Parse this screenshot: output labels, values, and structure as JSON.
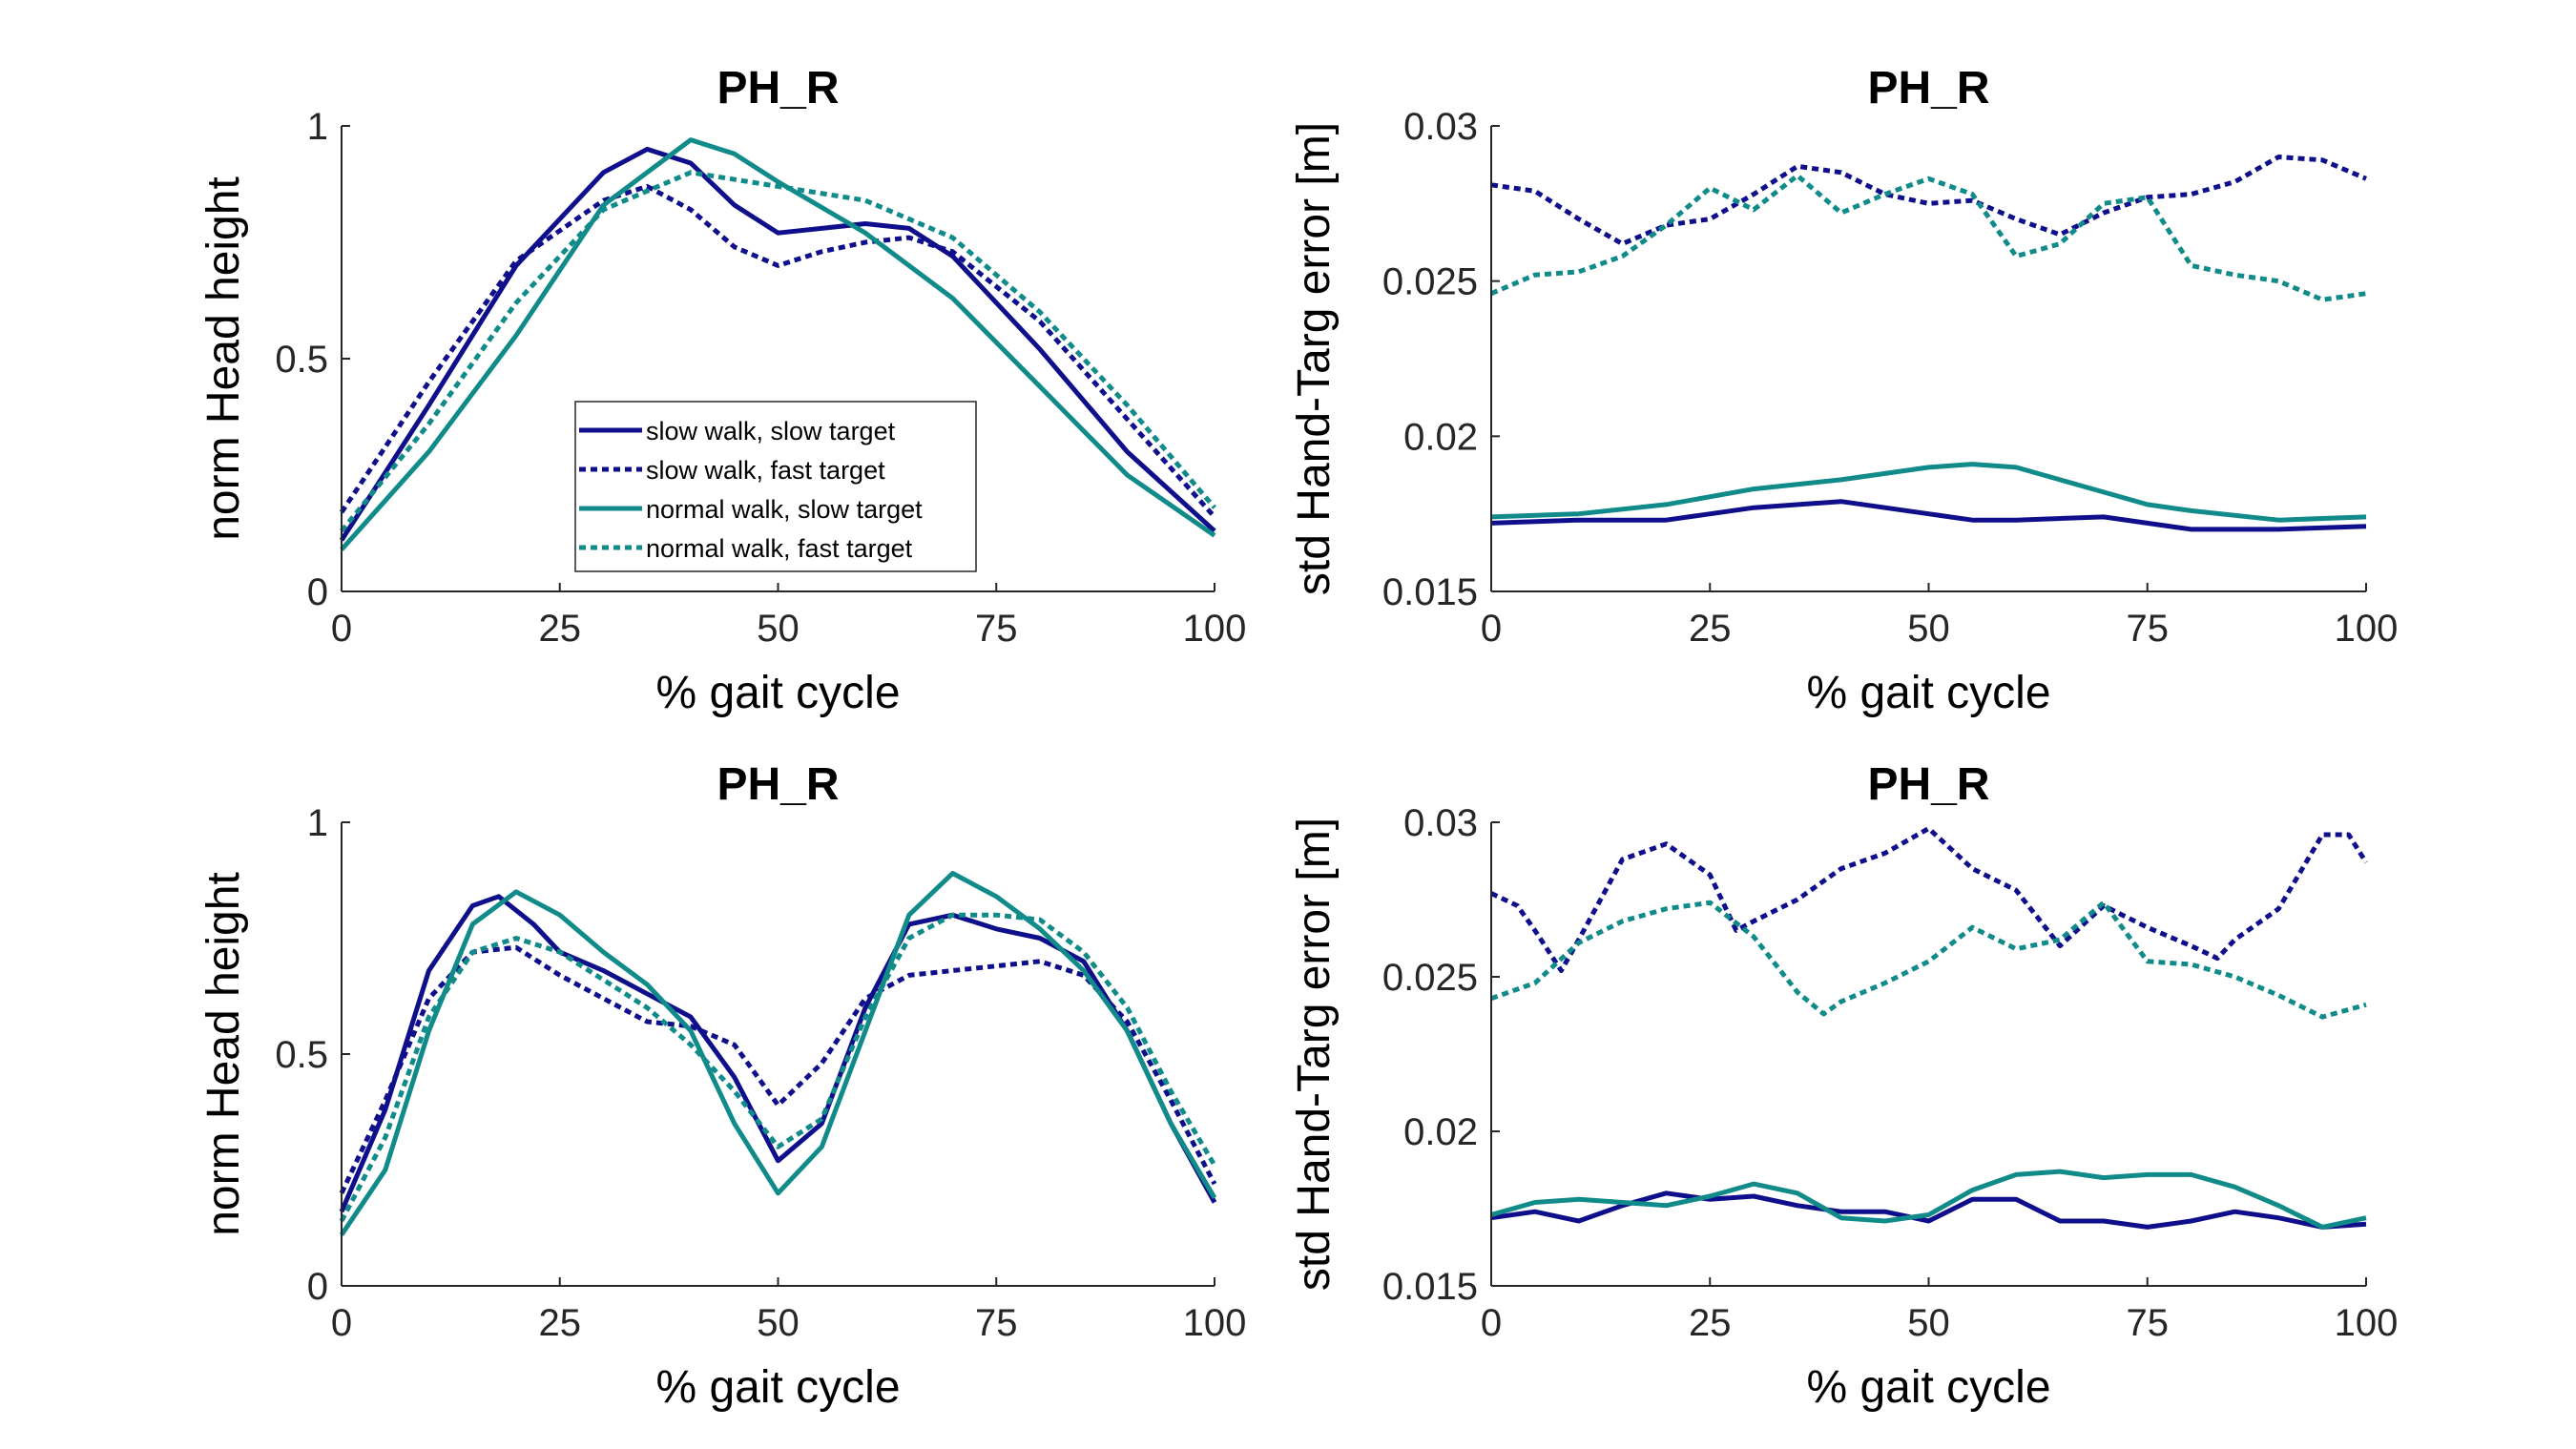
{
  "chart_data": [
    {
      "type": "line",
      "title": "PH_R",
      "xlabel": "% gait cycle",
      "ylabel": "norm Head height",
      "xlim": [
        0,
        100
      ],
      "ylim": [
        0,
        1
      ],
      "xticks": [
        0,
        25,
        50,
        75,
        100
      ],
      "yticks": [
        0,
        0.5,
        1
      ],
      "xtick_labels": [
        "0",
        "25",
        "50",
        "75",
        "100"
      ],
      "ytick_labels": [
        "0",
        "0.5",
        "1"
      ],
      "legend_position": "lower-center",
      "grid": false,
      "series": [
        {
          "name": "slow walk, slow target",
          "color": "#0f0f8c",
          "style": "solid",
          "x": [
            0,
            10,
            20,
            30,
            35,
            40,
            45,
            50,
            55,
            60,
            65,
            70,
            80,
            90,
            100
          ],
          "y": [
            0.11,
            0.4,
            0.7,
            0.9,
            0.95,
            0.92,
            0.83,
            0.77,
            0.78,
            0.79,
            0.78,
            0.72,
            0.52,
            0.3,
            0.13
          ]
        },
        {
          "name": "slow walk, fast target",
          "color": "#0f0f8c",
          "style": "dotted",
          "x": [
            0,
            10,
            20,
            30,
            35,
            40,
            45,
            50,
            55,
            60,
            65,
            70,
            80,
            90,
            100
          ],
          "y": [
            0.17,
            0.45,
            0.71,
            0.84,
            0.87,
            0.82,
            0.74,
            0.7,
            0.73,
            0.75,
            0.76,
            0.73,
            0.58,
            0.37,
            0.16
          ]
        },
        {
          "name": "normal walk, slow target",
          "color": "#108b89",
          "style": "solid",
          "x": [
            0,
            10,
            20,
            30,
            40,
            45,
            50,
            60,
            70,
            80,
            90,
            100
          ],
          "y": [
            0.09,
            0.3,
            0.55,
            0.83,
            0.97,
            0.94,
            0.88,
            0.77,
            0.63,
            0.44,
            0.25,
            0.12
          ]
        },
        {
          "name": "normal walk, fast target",
          "color": "#108b89",
          "style": "dotted",
          "x": [
            0,
            10,
            20,
            30,
            40,
            50,
            60,
            70,
            80,
            90,
            100
          ],
          "y": [
            0.13,
            0.36,
            0.62,
            0.82,
            0.9,
            0.87,
            0.84,
            0.76,
            0.6,
            0.4,
            0.18
          ]
        }
      ]
    },
    {
      "type": "line",
      "title": "PH_R",
      "xlabel": "% gait cycle",
      "ylabel": "std Hand-Targ error [m]",
      "xlim": [
        0,
        100
      ],
      "ylim": [
        0.015,
        0.03
      ],
      "xticks": [
        0,
        25,
        50,
        75,
        100
      ],
      "yticks": [
        0.015,
        0.02,
        0.025,
        0.03
      ],
      "xtick_labels": [
        "0",
        "25",
        "50",
        "75",
        "100"
      ],
      "ytick_labels": [
        "0.015",
        "0.02",
        "0.025",
        "0.03"
      ],
      "grid": false,
      "series": [
        {
          "color": "#0f0f8c",
          "style": "dotted",
          "x": [
            0,
            5,
            10,
            15,
            20,
            25,
            30,
            35,
            40,
            45,
            50,
            55,
            60,
            65,
            70,
            75,
            80,
            85,
            90,
            95,
            100
          ],
          "y": [
            0.0281,
            0.0279,
            0.027,
            0.0262,
            0.0268,
            0.027,
            0.0278,
            0.0287,
            0.0285,
            0.0278,
            0.0275,
            0.0276,
            0.027,
            0.0265,
            0.0272,
            0.0277,
            0.0278,
            0.0282,
            0.029,
            0.0289,
            0.0283
          ]
        },
        {
          "color": "#108b89",
          "style": "dotted",
          "x": [
            0,
            5,
            10,
            15,
            20,
            25,
            30,
            35,
            40,
            45,
            50,
            55,
            60,
            65,
            70,
            75,
            80,
            85,
            90,
            95,
            100
          ],
          "y": [
            0.0246,
            0.0252,
            0.0253,
            0.0258,
            0.0268,
            0.028,
            0.0273,
            0.0284,
            0.0272,
            0.0278,
            0.0283,
            0.0278,
            0.0258,
            0.0262,
            0.0275,
            0.0277,
            0.0255,
            0.0252,
            0.025,
            0.0244,
            0.0246
          ]
        },
        {
          "color": "#0f0f8c",
          "style": "solid",
          "x": [
            0,
            10,
            20,
            30,
            40,
            45,
            50,
            55,
            60,
            70,
            80,
            90,
            100
          ],
          "y": [
            0.0172,
            0.0173,
            0.0173,
            0.0177,
            0.0179,
            0.0177,
            0.0175,
            0.0173,
            0.0173,
            0.0174,
            0.017,
            0.017,
            0.0171
          ]
        },
        {
          "color": "#108b89",
          "style": "solid",
          "x": [
            0,
            10,
            20,
            30,
            40,
            50,
            55,
            60,
            65,
            70,
            75,
            80,
            90,
            100
          ],
          "y": [
            0.0174,
            0.0175,
            0.0178,
            0.0183,
            0.0186,
            0.019,
            0.0191,
            0.019,
            0.0186,
            0.0182,
            0.0178,
            0.0176,
            0.0173,
            0.0174
          ]
        }
      ]
    },
    {
      "type": "line",
      "title": "PH_R",
      "xlabel": "% gait cycle",
      "ylabel": "norm Head height",
      "xlim": [
        0,
        100
      ],
      "ylim": [
        0,
        1
      ],
      "xticks": [
        0,
        25,
        50,
        75,
        100
      ],
      "yticks": [
        0,
        0.5,
        1
      ],
      "xtick_labels": [
        "0",
        "25",
        "50",
        "75",
        "100"
      ],
      "ytick_labels": [
        "0",
        "0.5",
        "1"
      ],
      "grid": false,
      "series": [
        {
          "color": "#0f0f8c",
          "style": "solid",
          "x": [
            0,
            5,
            10,
            15,
            18,
            22,
            25,
            30,
            35,
            40,
            45,
            50,
            55,
            60,
            65,
            70,
            75,
            80,
            85,
            90,
            95,
            100
          ],
          "y": [
            0.16,
            0.38,
            0.68,
            0.82,
            0.84,
            0.78,
            0.72,
            0.68,
            0.63,
            0.58,
            0.45,
            0.27,
            0.35,
            0.6,
            0.78,
            0.8,
            0.77,
            0.75,
            0.7,
            0.55,
            0.35,
            0.18
          ]
        },
        {
          "color": "#0f0f8c",
          "style": "dotted",
          "x": [
            0,
            5,
            10,
            15,
            20,
            25,
            30,
            35,
            40,
            45,
            50,
            55,
            60,
            65,
            70,
            75,
            80,
            85,
            90,
            95,
            100
          ],
          "y": [
            0.2,
            0.4,
            0.62,
            0.72,
            0.73,
            0.67,
            0.62,
            0.57,
            0.56,
            0.52,
            0.39,
            0.48,
            0.62,
            0.67,
            0.68,
            0.69,
            0.7,
            0.67,
            0.57,
            0.4,
            0.22
          ]
        },
        {
          "color": "#108b89",
          "style": "solid",
          "x": [
            0,
            5,
            10,
            15,
            20,
            25,
            30,
            35,
            40,
            45,
            50,
            55,
            60,
            65,
            70,
            75,
            80,
            85,
            90,
            95,
            100
          ],
          "y": [
            0.11,
            0.25,
            0.55,
            0.78,
            0.85,
            0.8,
            0.72,
            0.65,
            0.55,
            0.35,
            0.2,
            0.3,
            0.55,
            0.8,
            0.89,
            0.84,
            0.77,
            0.68,
            0.55,
            0.35,
            0.19
          ]
        },
        {
          "color": "#108b89",
          "style": "dotted",
          "x": [
            0,
            5,
            10,
            15,
            20,
            25,
            30,
            35,
            40,
            45,
            50,
            55,
            60,
            65,
            70,
            75,
            80,
            85,
            90,
            95,
            100
          ],
          "y": [
            0.14,
            0.32,
            0.58,
            0.72,
            0.75,
            0.72,
            0.66,
            0.6,
            0.52,
            0.42,
            0.3,
            0.36,
            0.58,
            0.75,
            0.8,
            0.8,
            0.79,
            0.72,
            0.6,
            0.42,
            0.26
          ]
        }
      ]
    },
    {
      "type": "line",
      "title": "PH_R",
      "xlabel": "% gait cycle",
      "ylabel": "std Hand-Targ error [m]",
      "xlim": [
        0,
        100
      ],
      "ylim": [
        0.015,
        0.03
      ],
      "xticks": [
        0,
        25,
        50,
        75,
        100
      ],
      "yticks": [
        0.015,
        0.02,
        0.025,
        0.03
      ],
      "xtick_labels": [
        "0",
        "25",
        "50",
        "75",
        "100"
      ],
      "ytick_labels": [
        "0.015",
        "0.02",
        "0.025",
        "0.03"
      ],
      "grid": false,
      "series": [
        {
          "color": "#0f0f8c",
          "style": "dotted",
          "x": [
            0,
            3,
            5,
            8,
            10,
            15,
            20,
            25,
            28,
            30,
            35,
            40,
            45,
            50,
            55,
            60,
            65,
            70,
            75,
            80,
            83,
            85,
            90,
            95,
            98,
            100
          ],
          "y": [
            0.0277,
            0.0273,
            0.0265,
            0.0252,
            0.0262,
            0.0288,
            0.0293,
            0.0283,
            0.0265,
            0.0268,
            0.0275,
            0.0285,
            0.029,
            0.0298,
            0.0285,
            0.0278,
            0.026,
            0.0273,
            0.0266,
            0.026,
            0.0256,
            0.0262,
            0.0272,
            0.0296,
            0.0296,
            0.0287
          ]
        },
        {
          "color": "#108b89",
          "style": "dotted",
          "x": [
            0,
            5,
            10,
            15,
            20,
            25,
            30,
            35,
            38,
            40,
            45,
            50,
            55,
            60,
            65,
            70,
            75,
            80,
            85,
            90,
            95,
            100
          ],
          "y": [
            0.0243,
            0.0248,
            0.0261,
            0.0268,
            0.0272,
            0.0274,
            0.0263,
            0.0245,
            0.0238,
            0.0242,
            0.0248,
            0.0255,
            0.0266,
            0.0259,
            0.0262,
            0.0274,
            0.0255,
            0.0254,
            0.025,
            0.0244,
            0.0237,
            0.0241
          ]
        },
        {
          "color": "#0f0f8c",
          "style": "solid",
          "x": [
            0,
            5,
            10,
            15,
            20,
            25,
            30,
            35,
            40,
            45,
            50,
            55,
            60,
            65,
            70,
            75,
            80,
            85,
            90,
            95,
            100
          ],
          "y": [
            0.0172,
            0.0174,
            0.0171,
            0.0176,
            0.018,
            0.0178,
            0.0179,
            0.0176,
            0.0174,
            0.0174,
            0.0171,
            0.0178,
            0.0178,
            0.0171,
            0.0171,
            0.0169,
            0.0171,
            0.0174,
            0.0172,
            0.0169,
            0.017
          ]
        },
        {
          "color": "#108b89",
          "style": "solid",
          "x": [
            0,
            5,
            10,
            15,
            20,
            25,
            30,
            35,
            40,
            45,
            50,
            55,
            60,
            65,
            70,
            75,
            80,
            85,
            90,
            95,
            100
          ],
          "y": [
            0.0173,
            0.0177,
            0.0178,
            0.0177,
            0.0176,
            0.0179,
            0.0183,
            0.018,
            0.0172,
            0.0171,
            0.0173,
            0.0181,
            0.0186,
            0.0187,
            0.0185,
            0.0186,
            0.0186,
            0.0182,
            0.0176,
            0.0169,
            0.0172
          ]
        }
      ]
    }
  ]
}
